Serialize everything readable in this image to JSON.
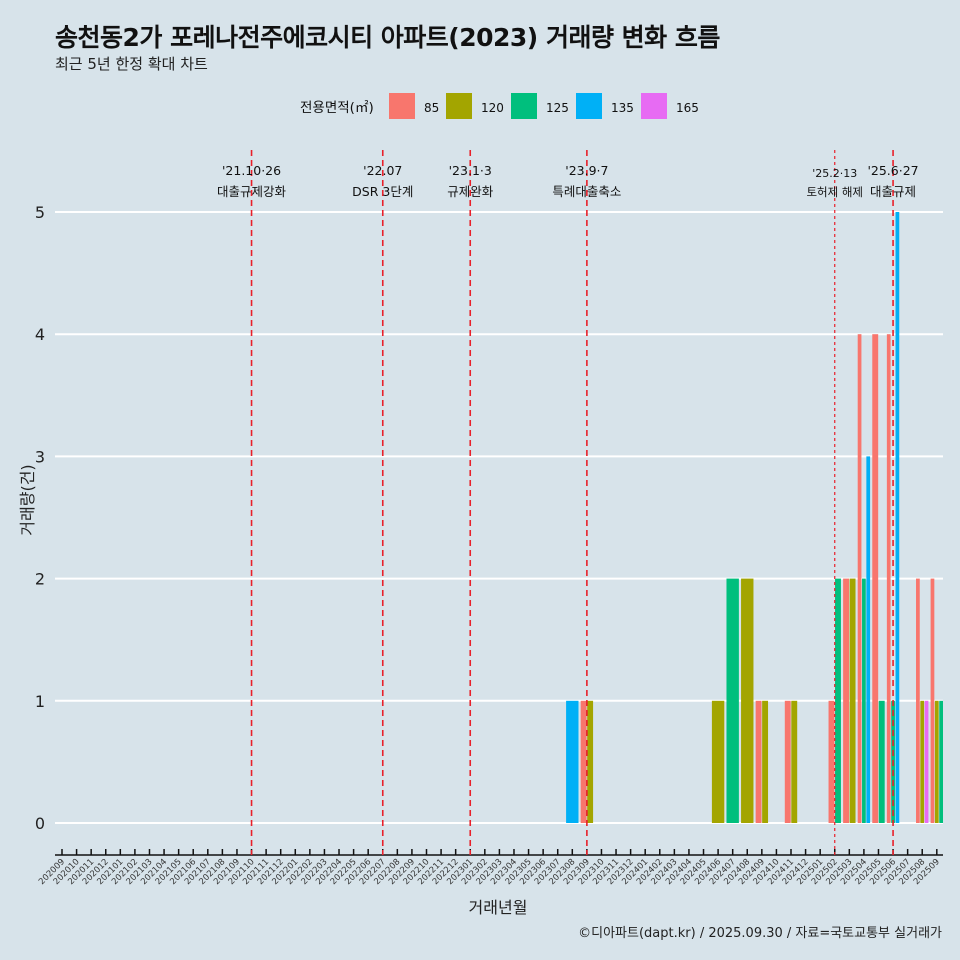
{
  "chart_data": {
    "type": "bar",
    "title": "송천동2가 포레나전주에코시티 아파트(2023) 거래량 변화 흐름",
    "subtitle": "최근 5년 한정 확대 차트",
    "xlabel": "거래년월",
    "ylabel": "거래량(건)",
    "ylim": [
      0,
      5
    ],
    "yticks": [
      0,
      1,
      2,
      3,
      4,
      5
    ],
    "grid": true,
    "legend": {
      "title": "전용면적(㎡)",
      "placement": "top",
      "entries": [
        {
          "name": "85",
          "color": "#F8766D"
        },
        {
          "name": "120",
          "color": "#A3A500"
        },
        {
          "name": "125",
          "color": "#00BF7D"
        },
        {
          "name": "135",
          "color": "#00B0F6"
        },
        {
          "name": "165",
          "color": "#E76BF3"
        }
      ]
    },
    "categories": [
      "202009",
      "202010",
      "202011",
      "202012",
      "202101",
      "202102",
      "202103",
      "202104",
      "202105",
      "202106",
      "202107",
      "202108",
      "202109",
      "202110",
      "202111",
      "202112",
      "202201",
      "202202",
      "202203",
      "202204",
      "202205",
      "202206",
      "202207",
      "202208",
      "202209",
      "202210",
      "202211",
      "202212",
      "202301",
      "202302",
      "202303",
      "202304",
      "202305",
      "202306",
      "202307",
      "202308",
      "202309",
      "202310",
      "202311",
      "202312",
      "202401",
      "202402",
      "202403",
      "202404",
      "202405",
      "202406",
      "202407",
      "202408",
      "202409",
      "202410",
      "202411",
      "202412",
      "202501",
      "202502",
      "202503",
      "202504",
      "202505",
      "202506",
      "202507",
      "202508",
      "202509"
    ],
    "data": [
      {
        "month": "202308",
        "area": "135",
        "count": 1
      },
      {
        "month": "202309",
        "area": "85",
        "count": 1
      },
      {
        "month": "202309",
        "area": "120",
        "count": 1
      },
      {
        "month": "202406",
        "area": "120",
        "count": 1
      },
      {
        "month": "202407",
        "area": "125",
        "count": 2
      },
      {
        "month": "202408",
        "area": "120",
        "count": 2
      },
      {
        "month": "202409",
        "area": "85",
        "count": 1
      },
      {
        "month": "202409",
        "area": "120",
        "count": 1
      },
      {
        "month": "202411",
        "area": "85",
        "count": 1
      },
      {
        "month": "202411",
        "area": "120",
        "count": 1
      },
      {
        "month": "202502",
        "area": "85",
        "count": 1
      },
      {
        "month": "202502",
        "area": "125",
        "count": 2
      },
      {
        "month": "202503",
        "area": "85",
        "count": 2
      },
      {
        "month": "202503",
        "area": "120",
        "count": 2
      },
      {
        "month": "202504",
        "area": "85",
        "count": 4
      },
      {
        "month": "202504",
        "area": "125",
        "count": 2
      },
      {
        "month": "202504",
        "area": "135",
        "count": 3
      },
      {
        "month": "202505",
        "area": "85",
        "count": 4
      },
      {
        "month": "202505",
        "area": "125",
        "count": 1
      },
      {
        "month": "202506",
        "area": "85",
        "count": 4
      },
      {
        "month": "202506",
        "area": "125",
        "count": 1
      },
      {
        "month": "202506",
        "area": "135",
        "count": 5
      },
      {
        "month": "202508",
        "area": "85",
        "count": 2
      },
      {
        "month": "202508",
        "area": "120",
        "count": 1
      },
      {
        "month": "202508",
        "area": "165",
        "count": 1
      },
      {
        "month": "202509",
        "area": "85",
        "count": 2
      },
      {
        "month": "202509",
        "area": "120",
        "count": 1
      },
      {
        "month": "202509",
        "area": "125",
        "count": 1
      }
    ],
    "events": [
      {
        "month": "202110",
        "date": "'21.10·26",
        "label": "대출규제강화",
        "style": "dashed"
      },
      {
        "month": "202207",
        "date": "'22.07",
        "label": "DSR 3단계",
        "style": "dashed"
      },
      {
        "month": "202301",
        "date": "'23.1·3",
        "label": "규제완화",
        "style": "dashed"
      },
      {
        "month": "202309",
        "date": "'23.9·7",
        "label": "특례대출축소",
        "style": "dashed"
      },
      {
        "month": "202502",
        "date": "'25.2·13",
        "label": "토허제 해제",
        "style": "dotted"
      },
      {
        "month": "202506",
        "date": "'25.6·27",
        "label": "대출규제",
        "style": "dashed"
      }
    ]
  },
  "caption": "©디아파트(dapt.kr) / 2025.09.30 / 자료=국토교통부 실거래가"
}
